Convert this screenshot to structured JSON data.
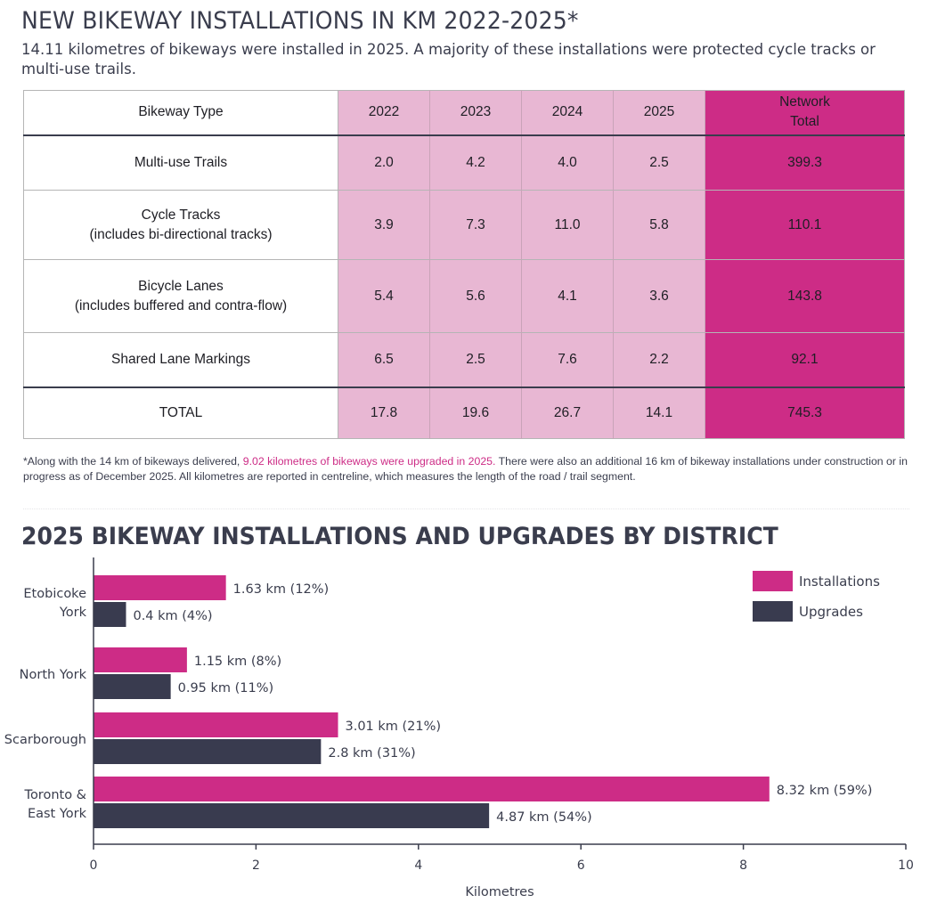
{
  "header": {
    "title": "NEW BIKEWAY INSTALLATIONS IN KM 2022-2025*",
    "subtitle": "14.11 kilometres of bikeways were installed in 2025. A majority of these installations were protected cycle tracks or multi-use trails."
  },
  "table": {
    "type_header": "Bikeway Type",
    "years": [
      "2022",
      "2023",
      "2024",
      "2025"
    ],
    "total_header_line1": "Network",
    "total_header_line2": "Total",
    "rows": [
      {
        "line1": "Multi-use Trails",
        "line2": "",
        "values": [
          "2.0",
          "4.2",
          "4.0",
          "2.5"
        ],
        "total": "399.3"
      },
      {
        "line1": "Cycle Tracks",
        "line2": "(includes bi-directional tracks)",
        "values": [
          "3.9",
          "7.3",
          "11.0",
          "5.8"
        ],
        "total": "110.1"
      },
      {
        "line1": "Bicycle Lanes",
        "line2": "(includes buffered and contra-flow)",
        "values": [
          "5.4",
          "5.6",
          "4.1",
          "3.6"
        ],
        "total": "143.8"
      },
      {
        "line1": "Shared Lane Markings",
        "line2": "",
        "values": [
          "6.5",
          "2.5",
          "7.6",
          "2.2"
        ],
        "total": "92.1"
      }
    ],
    "total_row": {
      "label": "TOTAL",
      "values": [
        "17.8",
        "19.6",
        "26.7",
        "14.1"
      ],
      "total": "745.3"
    }
  },
  "footnote": {
    "part1": "*Along with the 14 km of bikeways delivered, ",
    "highlight": "9.02 kilometres of bikeways were upgraded in 2025.",
    "part2": " There were also an additional 16 km of bikeway installations under construction or in progress as of December 2025. All kilometres are reported in centreline, which measures the length of the road / trail segment."
  },
  "colors": {
    "installations": "#cd2c86",
    "upgrades": "#393b4f",
    "axis": "#3a3d4d"
  },
  "chart_data": {
    "type": "bar",
    "orientation": "horizontal",
    "title": "2025 BIKEWAY INSTALLATIONS AND UPGRADES BY DISTRICT",
    "xlabel": "Kilometres",
    "ylabel": "",
    "xlim": [
      0,
      10
    ],
    "xticks": [
      "0",
      "2",
      "4",
      "6",
      "8",
      "10"
    ],
    "legend_position": "top-right",
    "categories": [
      {
        "line1": "Etobicoke",
        "line2": "York"
      },
      {
        "line1": "North York",
        "line2": ""
      },
      {
        "line1": "Scarborough",
        "line2": ""
      },
      {
        "line1": "Toronto &",
        "line2": "East York"
      }
    ],
    "series": [
      {
        "name": "Installations",
        "values": [
          1.63,
          1.15,
          3.01,
          8.32
        ],
        "labels": [
          "1.63 km (12%)",
          "1.15 km (8%)",
          "3.01 km (21%)",
          "8.32 km (59%)"
        ]
      },
      {
        "name": "Upgrades",
        "values": [
          0.4,
          0.95,
          2.8,
          4.87
        ],
        "labels": [
          "0.4 km (4%)",
          "0.95 km (11%)",
          "2.8 km (31%)",
          "4.87 km (54%)"
        ]
      }
    ]
  }
}
